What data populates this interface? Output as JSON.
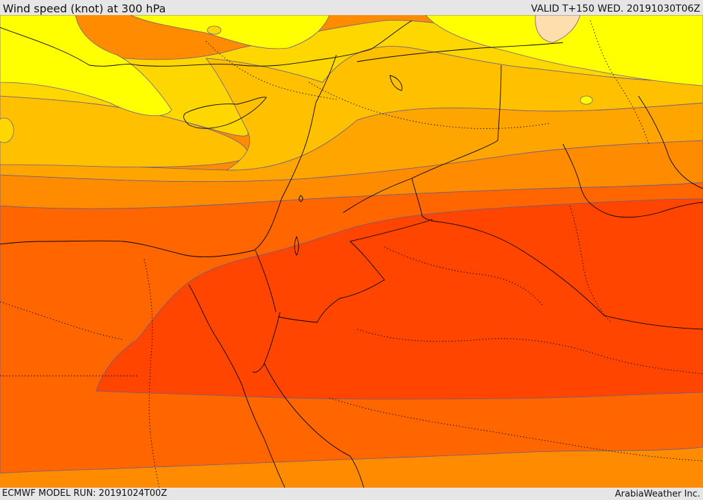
{
  "header": {
    "title": "Wind speed (knot) at 300 hPa",
    "valid": "VALID T+150 WED. 20191030T06Z"
  },
  "footer": {
    "model_run": "ECMWF MODEL RUN: 20191024T00Z",
    "credit": "ArabiaWeather Inc."
  },
  "map": {
    "colors": {
      "band_yellow": "#ffff00",
      "band_gold": "#ffd700",
      "band_amber": "#ffc000",
      "band_orange_light": "#ffa500",
      "band_orange": "#ff8c00",
      "band_orange_dark": "#ff6600",
      "band_red": "#ff4500",
      "band_peach": "#ffdead",
      "contour_line": "#6a5a8a",
      "coastline": "#000000"
    }
  }
}
